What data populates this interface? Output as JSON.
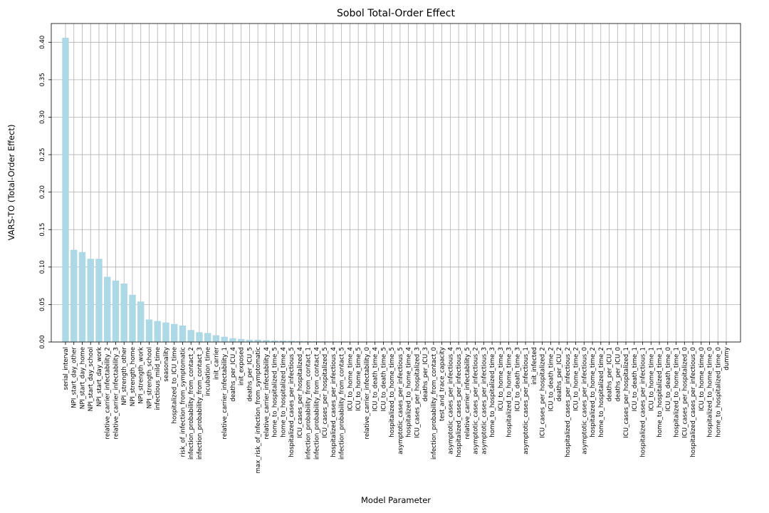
{
  "chart_data": {
    "type": "bar",
    "title": "Sobol Total-Order Effect",
    "xlabel": "Model Parameter",
    "ylabel": "VARS-TO (Total-Order Effect)",
    "ylim": [
      0,
      0.425
    ],
    "yticks": [
      "0.00",
      "0.05",
      "0.10",
      "0.15",
      "0.20",
      "0.25",
      "0.30",
      "0.35",
      "0.40"
    ],
    "grid": true,
    "bar_color": "#add8e6",
    "categories": [
      "serial_interval",
      "NPI_start_day_other",
      "NPI_start_day_home",
      "NPI_start_day_school",
      "NPI_start_day_work",
      "relative_carrier_infectability_2",
      "relative_carrier_infectability_3",
      "NPI_strength_other",
      "NPI_strength_home",
      "NPI_strength_work",
      "NPI_strength_school",
      "infectious_mild_time",
      "seasonality",
      "hospitalized_to_ICU_time",
      "risk_of_infection_from_symptomatic",
      "infection_probability_from_contact_2",
      "infection_probability_from_contact_3",
      "incubation_time",
      "init_carrier",
      "relative_carrier_infectability_1",
      "deaths_per_ICU_4",
      "init_exposed",
      "deaths_per_ICU_5",
      "max_risk_of_infection_from_symptomatic",
      "relative_carrier_infectability_4",
      "home_to_hospitalized_time_5",
      "home_to_hospitalized_time_4",
      "hospitalized_cases_per_infectious_5",
      "ICU_cases_per_hospitalized_4",
      "infection_probability_from_contact_1",
      "infection_probability_from_contact_4",
      "ICU_cases_per_hospitalized_5",
      "hospitalized_cases_per_infectious_4",
      "infection_probability_from_contact_5",
      "ICU_to_home_time_4",
      "ICU_to_home_time_5",
      "relative_carrier_infectability_0",
      "ICU_to_death_time_4",
      "ICU_to_death_time_5",
      "hospitalized_to_home_time_5",
      "asymptotic_cases_per_infectious_5",
      "hospitalized_to_home_time_4",
      "ICU_cases_per_hospitalized_3",
      "deaths_per_ICU_3",
      "infection_probability_from_contact_0",
      "test_and_trace_capacity",
      "asymptotic_cases_per_infectious_4",
      "hospitalized_cases_per_infectious_3",
      "relative_carrier_infectability_5",
      "asymptotic_cases_per_infectious_2",
      "asymptotic_cases_per_infectious_3",
      "home_to_hospitalized_time_3",
      "ICU_to_home_time_3",
      "hospitalized_to_home_time_3",
      "ICU_to_death_time_3",
      "asymptotic_cases_per_infectious_1",
      "init_infected",
      "ICU_cases_per_hospitalized_2",
      "ICU_to_death_time_2",
      "deaths_per_ICU_2",
      "hospitalized_cases_per_infectious_2",
      "ICU_to_home_time_2",
      "asymptotic_cases_per_infectious_0",
      "hospitalized_to_home_time_2",
      "home_to_hospitalized_time_2",
      "deaths_per_ICU_1",
      "deaths_per_ICU_0",
      "ICU_cases_per_hospitalized_1",
      "ICU_to_death_time_1",
      "hospitalized_cases_per_infectious_1",
      "ICU_to_home_time_1",
      "home_to_hospitalized_time_1",
      "ICU_to_death_time_0",
      "hospitalized_to_home_time_1",
      "ICU_cases_per_hospitalized_0",
      "hospitalized_cases_per_infectious_0",
      "ICU_to_home_time_0",
      "hospitalized_to_home_time_0",
      "home_to_hospitalized_time_0",
      "dummy"
    ],
    "values": [
      0.406,
      0.123,
      0.12,
      0.111,
      0.111,
      0.087,
      0.082,
      0.078,
      0.063,
      0.054,
      0.03,
      0.028,
      0.026,
      0.024,
      0.022,
      0.016,
      0.013,
      0.012,
      0.009,
      0.007,
      0.005,
      0.004,
      0.003,
      0.003,
      0.0025,
      0.002,
      0.0018,
      0.0015,
      0.0012,
      0.001,
      0.0009,
      0.0008,
      0.0007,
      0.0006,
      0.0005,
      0.0005,
      0.0004,
      0.0004,
      0.0003,
      0.0003,
      0.0003,
      0.0002,
      0.0002,
      0.0002,
      0.0002,
      0.0001,
      0.0001,
      0.0001,
      0.0001,
      0.0001,
      0.0001,
      0.0001,
      0.0001,
      0.0001,
      0.0001,
      0.0001,
      0.0001,
      0.0001,
      0.0001,
      0.0001,
      0.0001,
      0.0001,
      0.0001,
      0.0001,
      0.0001,
      5e-05,
      5e-05,
      5e-05,
      5e-05,
      5e-05,
      5e-05,
      5e-05,
      5e-05,
      5e-05,
      5e-05,
      5e-05,
      5e-05,
      5e-05,
      5e-05,
      0.0
    ]
  }
}
